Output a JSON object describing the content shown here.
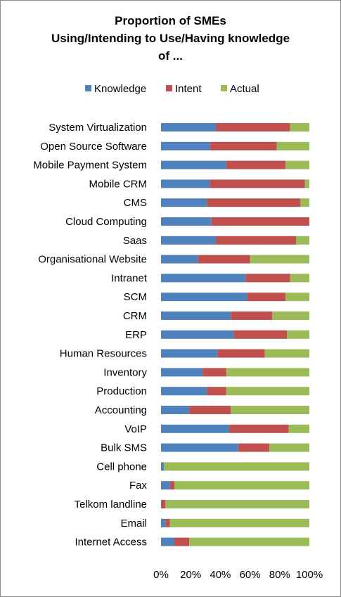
{
  "chart_data": {
    "type": "bar",
    "orientation": "horizontal",
    "stacked": "percent",
    "title": "Proportion of SMEs\nUsing/Intending to Use/Having knowledge\nof ...",
    "legend_position": "top",
    "categories": [
      "System Virtualization",
      "Open Source Software",
      "Mobile Payment System",
      "Mobile CRM",
      "CMS",
      "Cloud Computing",
      "Saas",
      "Organisational Website",
      "Intranet",
      "SCM",
      "CRM",
      "ERP",
      "Human Resources",
      "Inventory",
      "Production",
      "Accounting",
      "VoIP",
      "Bulk SMS",
      "Cell phone",
      "Fax",
      "Telkom landline",
      "Email",
      "Internet Access"
    ],
    "series": [
      {
        "name": "Knowledge",
        "color": "#4f81bd",
        "values": [
          37,
          33,
          44,
          33,
          31,
          34,
          37,
          25,
          57,
          58,
          47,
          49,
          38,
          28,
          31,
          19,
          46,
          52,
          2,
          6,
          0,
          3,
          9
        ]
      },
      {
        "name": "Intent",
        "color": "#c0504d",
        "values": [
          50,
          45,
          40,
          64,
          63,
          66,
          54,
          35,
          30,
          26,
          28,
          36,
          32,
          16,
          13,
          28,
          40,
          21,
          0,
          3,
          3,
          3,
          10
        ]
      },
      {
        "name": "Actual",
        "color": "#9bbb59",
        "values": [
          13,
          22,
          16,
          3,
          6,
          0,
          9,
          40,
          13,
          16,
          25,
          15,
          30,
          56,
          56,
          53,
          14,
          27,
          98,
          91,
          97,
          94,
          81
        ]
      }
    ],
    "xlim": [
      0,
      100
    ],
    "x_ticks": [
      "0%",
      "20%",
      "40%",
      "60%",
      "80%",
      "100%"
    ],
    "grid": false
  }
}
